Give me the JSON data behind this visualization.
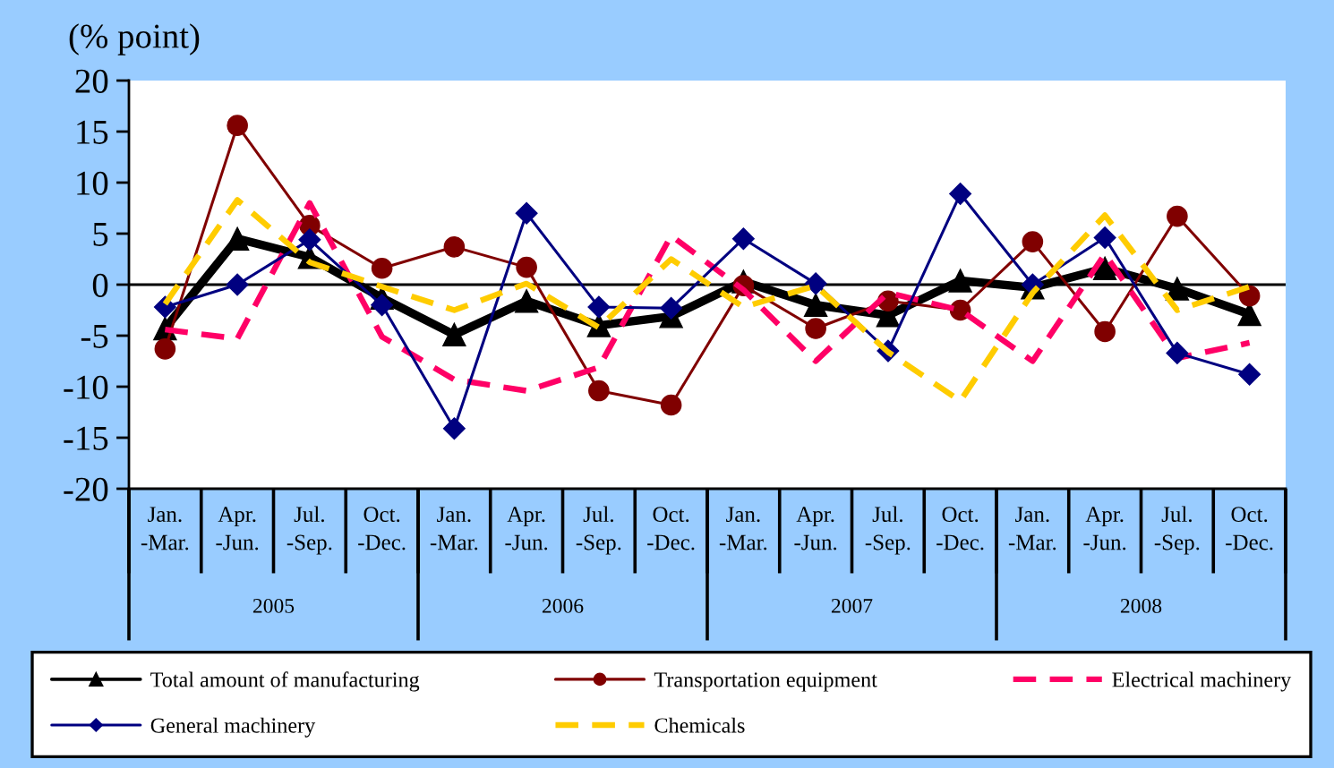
{
  "chart_data": {
    "type": "line",
    "ylabel": "(% point)",
    "categories": [
      "Jan.\n-Mar.",
      "Apr.\n-Jun.",
      "Jul.\n-Sep.",
      "Oct.\n-Dec.",
      "Jan.\n-Mar.",
      "Apr.\n-Jun.",
      "Jul.\n-Sep.",
      "Oct.\n-Dec.",
      "Jan.\n-Mar.",
      "Apr.\n-Jun.",
      "Jul.\n-Sep.",
      "Oct.\n-Dec.",
      "Jan.\n-Mar.",
      "Apr.\n-Jun.",
      "Jul.\n-Sep.",
      "Oct.\n-Dec."
    ],
    "annotations": [
      "2005",
      "2006",
      "2007",
      "2008"
    ],
    "series": [
      {
        "name": "Total amount of manufacturing",
        "color": "#000000",
        "marker": "triangle",
        "line_style": "solid",
        "values": [
          -4.3,
          4.5,
          2.7,
          -1.3,
          -4.9,
          -1.6,
          -4.0,
          -3.1,
          0.3,
          -2.0,
          -3.0,
          0.4,
          -0.3,
          1.6,
          -0.4,
          -2.9
        ]
      },
      {
        "name": "Transportation equipment",
        "color": "#800000",
        "marker": "circle",
        "line_style": "solid",
        "values": [
          -6.3,
          15.6,
          5.8,
          1.6,
          3.7,
          1.7,
          -10.4,
          -11.8,
          -0.1,
          -4.3,
          -1.6,
          -2.5,
          4.2,
          -4.6,
          6.7,
          -1.1
        ]
      },
      {
        "name": "Electrical machinery",
        "color": "#ff0066",
        "marker": "none",
        "line_style": "dashed",
        "values": [
          -4.4,
          -5.3,
          8.0,
          -5.1,
          -9.3,
          -10.4,
          -8.1,
          4.8,
          -0.5,
          -7.5,
          -0.8,
          -2.5,
          -7.5,
          3.0,
          -7.2,
          -5.7
        ]
      },
      {
        "name": "General machinery",
        "color": "#000080",
        "marker": "diamond",
        "line_style": "solid",
        "values": [
          -2.2,
          0.0,
          4.4,
          -2.0,
          -14.1,
          7.0,
          -2.2,
          -2.3,
          4.5,
          0.1,
          -6.5,
          8.9,
          0.0,
          4.6,
          -6.7,
          -8.8
        ]
      },
      {
        "name": "Chemicals",
        "color": "#ffcc00",
        "marker": "none",
        "line_style": "dashed",
        "values": [
          -1.9,
          8.3,
          2.2,
          -0.2,
          -2.5,
          0.1,
          -4.2,
          2.5,
          -2.2,
          -0.1,
          -6.6,
          -11.4,
          -0.8,
          6.8,
          -2.5,
          -0.2
        ]
      }
    ],
    "ylim": [
      -20,
      20
    ],
    "yticks": [
      -20,
      -15,
      -10,
      -5,
      0,
      5,
      10,
      15,
      20
    ],
    "ref_lines": [
      {
        "axis": "y",
        "value": 0,
        "color": "#000000"
      }
    ],
    "legend": "bottom"
  }
}
